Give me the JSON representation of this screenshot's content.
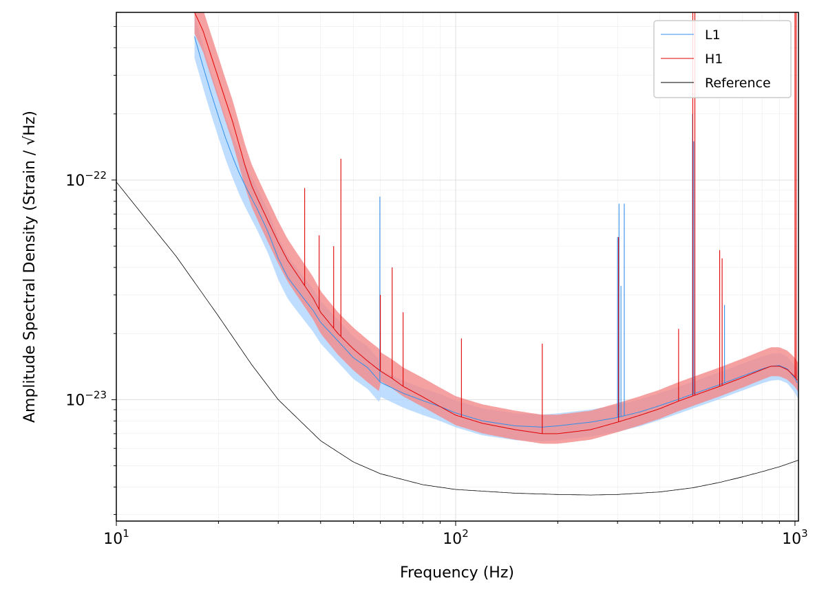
{
  "chart_data": {
    "type": "line",
    "title": "",
    "xlabel": "Frequency (Hz)",
    "ylabel": "Amplitude Spectral Density (Strain / √Hz)",
    "xscale": "log",
    "yscale": "log",
    "xlim": [
      10,
      1024
    ],
    "ylim": [
      2.8e-24,
      5.8e-22
    ],
    "x_ticks": [
      {
        "mantissa": "10",
        "exp": "1"
      },
      {
        "mantissa": "10",
        "exp": "2"
      },
      {
        "mantissa": "10",
        "exp": "3"
      }
    ],
    "y_ticks": [
      {
        "mantissa": "10",
        "exp": "−23"
      },
      {
        "mantissa": "10",
        "exp": "−22"
      }
    ],
    "grid": true,
    "legend_position": "top-right",
    "series": [
      {
        "name": "L1",
        "color": "#2f8fea",
        "band_color": "#a8d2ff",
        "x": [
          17,
          18,
          19,
          20,
          21,
          22,
          23,
          24,
          25,
          26,
          28,
          30,
          32,
          35,
          38,
          40,
          45,
          50,
          55,
          60,
          65,
          70,
          80,
          90,
          100,
          120,
          150,
          180,
          200,
          250,
          300,
          350,
          400,
          450,
          500,
          600,
          700,
          800,
          850,
          900,
          950,
          1000,
          1024
        ],
        "values": [
          4.5e-22,
          3.3e-22,
          2.5e-22,
          1.95e-22,
          1.55e-22,
          1.28e-22,
          1.08e-22,
          9.4e-23,
          8.3e-23,
          7.4e-23,
          5.8e-23,
          4.4e-23,
          3.6e-23,
          3e-23,
          2.55e-23,
          2.25e-23,
          1.85e-23,
          1.55e-23,
          1.4e-23,
          1.2e-23,
          1.13e-23,
          1.07e-23,
          9.9e-24,
          9.3e-24,
          8.7e-24,
          8e-24,
          7.6e-24,
          7.5e-24,
          7.6e-24,
          7.9e-24,
          8.3e-24,
          8.8e-24,
          9.4e-24,
          1e-23,
          1.06e-23,
          1.17e-23,
          1.28e-23,
          1.38e-23,
          1.42e-23,
          1.43e-23,
          1.38e-23,
          1.25e-23,
          1.16e-23
        ],
        "lines": [
          {
            "f": 59.8,
            "peak": 8.4e-23
          },
          {
            "f": 300,
            "peak": 5.5e-23
          },
          {
            "f": 303,
            "peak": 7.8e-23
          },
          {
            "f": 307,
            "peak": 3.3e-23
          },
          {
            "f": 314,
            "peak": 7.8e-23
          },
          {
            "f": 499,
            "peak": 2e-22
          },
          {
            "f": 503,
            "peak": 1.5e-22
          },
          {
            "f": 620,
            "peak": 2.7e-23
          }
        ]
      },
      {
        "name": "H1",
        "color": "#e00000",
        "band_color": "#f48a8a",
        "x": [
          17,
          18,
          19,
          20,
          21,
          22,
          23,
          24,
          25,
          26,
          28,
          30,
          32,
          35,
          38,
          40,
          45,
          50,
          55,
          60,
          65,
          70,
          80,
          90,
          100,
          120,
          150,
          180,
          200,
          250,
          300,
          350,
          400,
          450,
          500,
          600,
          700,
          800,
          850,
          900,
          950,
          1000,
          1024
        ],
        "values": [
          5.8e-22,
          4.8e-22,
          3.7e-22,
          2.9e-22,
          2.3e-22,
          1.85e-22,
          1.45e-22,
          1.15e-22,
          9.5e-23,
          8.3e-23,
          6.5e-23,
          5.2e-23,
          4.3e-23,
          3.5e-23,
          2.9e-23,
          2.5e-23,
          2e-23,
          1.7e-23,
          1.5e-23,
          1.35e-23,
          1.25e-23,
          1.15e-23,
          1.03e-23,
          9.3e-24,
          8.5e-24,
          7.8e-24,
          7.3e-24,
          7e-24,
          7e-24,
          7.3e-24,
          7.9e-24,
          8.5e-24,
          9.1e-24,
          9.8e-24,
          1.04e-23,
          1.15e-23,
          1.26e-23,
          1.37e-23,
          1.42e-23,
          1.42e-23,
          1.37e-23,
          1.27e-23,
          1.2e-23
        ],
        "lines": [
          {
            "f": 35.9,
            "peak": 9.2e-23
          },
          {
            "f": 39.6,
            "peak": 5.6e-23
          },
          {
            "f": 43.7,
            "peak": 5e-23
          },
          {
            "f": 45.9,
            "peak": 1.25e-22
          },
          {
            "f": 60,
            "peak": 3e-23
          },
          {
            "f": 65,
            "peak": 4e-23
          },
          {
            "f": 70,
            "peak": 2.5e-23
          },
          {
            "f": 104,
            "peak": 1.9e-23
          },
          {
            "f": 180,
            "peak": 1.8e-23
          },
          {
            "f": 302,
            "peak": 5.5e-23
          },
          {
            "f": 454,
            "peak": 2.1e-23
          },
          {
            "f": 500,
            "peak": 5.8e-22
          },
          {
            "f": 507,
            "peak": 5.8e-22
          },
          {
            "f": 600,
            "peak": 4.8e-23
          },
          {
            "f": 610,
            "peak": 4.4e-23
          },
          {
            "f": 1000,
            "peak": 5.8e-22
          },
          {
            "f": 1008,
            "peak": 5.8e-22
          }
        ]
      },
      {
        "name": "Reference",
        "color": "#000000",
        "x": [
          10,
          12,
          15,
          20,
          25,
          30,
          40,
          50,
          60,
          80,
          100,
          150,
          200,
          250,
          300,
          400,
          500,
          600,
          700,
          800,
          900,
          1024
        ],
        "values": [
          9.8e-23,
          6.9e-23,
          4.5e-23,
          2.4e-23,
          1.45e-23,
          1e-23,
          6.5e-24,
          5.2e-24,
          4.6e-24,
          4.1e-24,
          3.9e-24,
          3.75e-24,
          3.7e-24,
          3.68e-24,
          3.7e-24,
          3.8e-24,
          3.97e-24,
          4.2e-24,
          4.45e-24,
          4.7e-24,
          4.95e-24,
          5.3e-24
        ]
      }
    ]
  }
}
